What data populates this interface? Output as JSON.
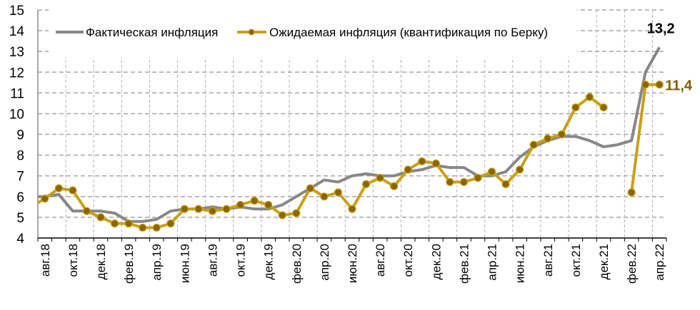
{
  "chart_data": {
    "type": "line",
    "title": "",
    "xlabel": "",
    "ylabel": "",
    "ylim": [
      4,
      15
    ],
    "yticks": [
      4,
      5,
      6,
      7,
      8,
      9,
      10,
      11,
      12,
      13,
      14,
      15
    ],
    "grid": true,
    "legend_position": "top-inside",
    "categories": [
      "авг.18",
      "сен.18",
      "окт.18",
      "ноя.18",
      "дек.18",
      "янв.19",
      "фев.19",
      "мар.19",
      "апр.19",
      "май.19",
      "июн.19",
      "июл.19",
      "авг.19",
      "сен.19",
      "окт.19",
      "ноя.19",
      "дек.19",
      "янв.20",
      "фев.20",
      "мар.20",
      "апр.20",
      "май.20",
      "июн.20",
      "июл.20",
      "авг.20",
      "сен.20",
      "окт.20",
      "ноя.20",
      "дек.20",
      "янв.21",
      "фев.21",
      "мар.21",
      "апр.21",
      "май.21",
      "июн.21",
      "июл.21",
      "авг.21",
      "сен.21",
      "окт.21",
      "ноя.21",
      "дек.21",
      "янв.22",
      "фев.22",
      "мар.22",
      "апр.22"
    ],
    "tick_labels": [
      "авг.18",
      "окт.18",
      "дек.18",
      "фев.19",
      "апр.19",
      "июн.19",
      "авг.19",
      "окт.19",
      "дек.19",
      "фев.20",
      "апр.20",
      "июн.20",
      "авг.20",
      "окт.20",
      "дек.20",
      "фев.21",
      "апр.21",
      "июн.21",
      "авг.21",
      "окт.21",
      "дек.21",
      "фев.22",
      "апр.22"
    ],
    "series": [
      {
        "name": "Фактическая инфляция",
        "color": "#878787",
        "markers": false,
        "leading_value": 6.0,
        "values": [
          6.0,
          6.1,
          5.3,
          5.3,
          5.3,
          5.2,
          4.8,
          4.8,
          4.9,
          5.3,
          5.4,
          5.4,
          5.5,
          5.4,
          5.5,
          5.4,
          5.4,
          5.6,
          6.0,
          6.4,
          6.8,
          6.7,
          7.0,
          7.1,
          7.0,
          7.0,
          7.2,
          7.3,
          7.5,
          7.4,
          7.4,
          7.0,
          7.0,
          7.2,
          7.9,
          8.4,
          8.7,
          8.9,
          8.9,
          8.7,
          8.4,
          8.5,
          8.7,
          12.0,
          13.2
        ]
      },
      {
        "name": "Ожидаемая инфляция (квантификация по Берку)",
        "color": "#c9a013",
        "marker_fill": "#8c6400",
        "markers": true,
        "leading_value": 5.5,
        "values": [
          5.9,
          6.4,
          6.3,
          5.3,
          5.0,
          4.7,
          4.7,
          4.5,
          4.5,
          4.7,
          5.4,
          5.4,
          5.3,
          5.4,
          5.6,
          5.8,
          5.6,
          5.1,
          5.2,
          6.4,
          6.0,
          6.2,
          5.4,
          6.6,
          6.9,
          6.5,
          7.3,
          7.7,
          7.6,
          6.7,
          6.7,
          6.9,
          7.2,
          6.6,
          7.3,
          8.5,
          8.8,
          9.0,
          10.3,
          10.8,
          10.3,
          null,
          6.2,
          11.4,
          11.4
        ]
      }
    ],
    "annotations": [
      {
        "text": "13,2",
        "series": 0,
        "index": 44,
        "color": "#000000"
      },
      {
        "text": "11,4",
        "series": 1,
        "index": 44,
        "color": "#7f6000"
      }
    ]
  },
  "legend": {
    "actual_label": "Фактическая инфляция",
    "expected_label": "Ожидаемая инфляция (квантификация по Берку)"
  }
}
